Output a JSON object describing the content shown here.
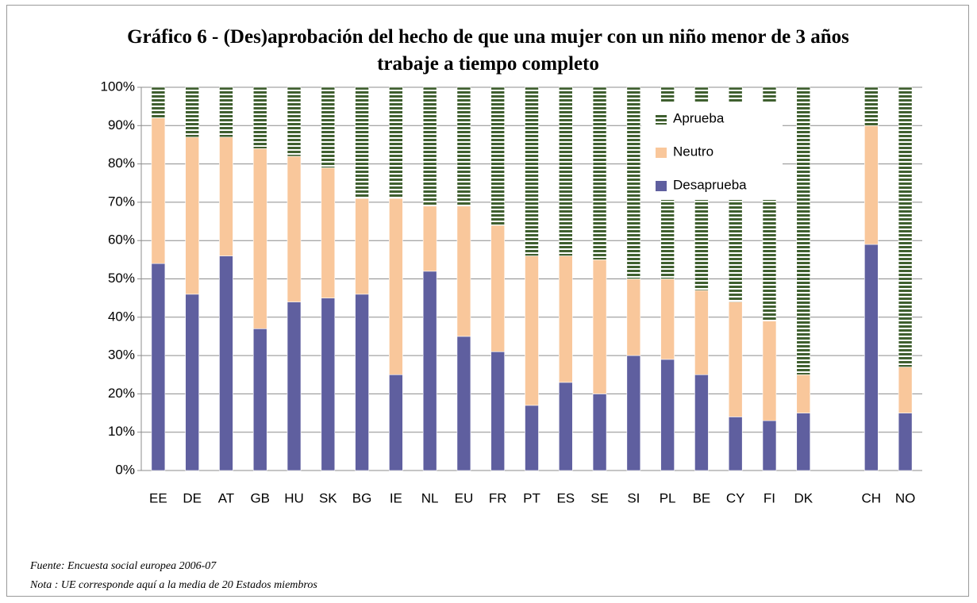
{
  "chart_data": {
    "type": "stacked_bar",
    "title": "Gráfico 6 - (Des)aprobación del hecho de que una mujer con un niño menor de 3 años trabaje a tiempo completo",
    "categories": [
      "EE",
      "DE",
      "AT",
      "GB",
      "HU",
      "SK",
      "BG",
      "IE",
      "NL",
      "EU",
      "FR",
      "PT",
      "ES",
      "SE",
      "SI",
      "PL",
      "BE",
      "CY",
      "FI",
      "DK",
      null,
      "CH",
      "NO"
    ],
    "series": [
      {
        "name": "Desaprueba",
        "color": "#5f5f9f",
        "values": [
          54,
          46,
          56,
          37,
          44,
          45,
          46,
          25,
          52,
          35,
          31,
          17,
          23,
          20,
          30,
          29,
          25,
          14,
          13,
          15,
          null,
          59,
          15
        ]
      },
      {
        "name": "Neutro",
        "color": "#f9c79b",
        "values": [
          38,
          41,
          31,
          47,
          38,
          34,
          25,
          46,
          17,
          34,
          33,
          39,
          33,
          35,
          20,
          21,
          22,
          30,
          26,
          10,
          null,
          31,
          12
        ]
      },
      {
        "name": "Aprueba",
        "color": "#3f5f2f",
        "pattern": "stripes",
        "values": [
          8,
          13,
          13,
          16,
          18,
          21,
          29,
          29,
          31,
          31,
          36,
          44,
          44,
          45,
          50,
          50,
          53,
          56,
          61,
          75,
          null,
          10,
          73
        ]
      }
    ],
    "ylim": [
      0,
      100
    ],
    "yticks": [
      {
        "value": 0,
        "label": "0%"
      },
      {
        "value": 10,
        "label": "10%"
      },
      {
        "value": 20,
        "label": "20%"
      },
      {
        "value": 30,
        "label": "30%"
      },
      {
        "value": 40,
        "label": "40%"
      },
      {
        "value": 50,
        "label": "50%"
      },
      {
        "value": 60,
        "label": "60%"
      },
      {
        "value": 70,
        "label": "70%"
      },
      {
        "value": 80,
        "label": "80%"
      },
      {
        "value": 90,
        "label": "90%"
      },
      {
        "value": 100,
        "label": "100%"
      }
    ],
    "grid": true,
    "legend": "upper-right",
    "notes": [
      "Fuente: Encuesta social europea 2006-07",
      "Nota : UE corresponde aquí a la media de 20 Estados miembros"
    ]
  }
}
